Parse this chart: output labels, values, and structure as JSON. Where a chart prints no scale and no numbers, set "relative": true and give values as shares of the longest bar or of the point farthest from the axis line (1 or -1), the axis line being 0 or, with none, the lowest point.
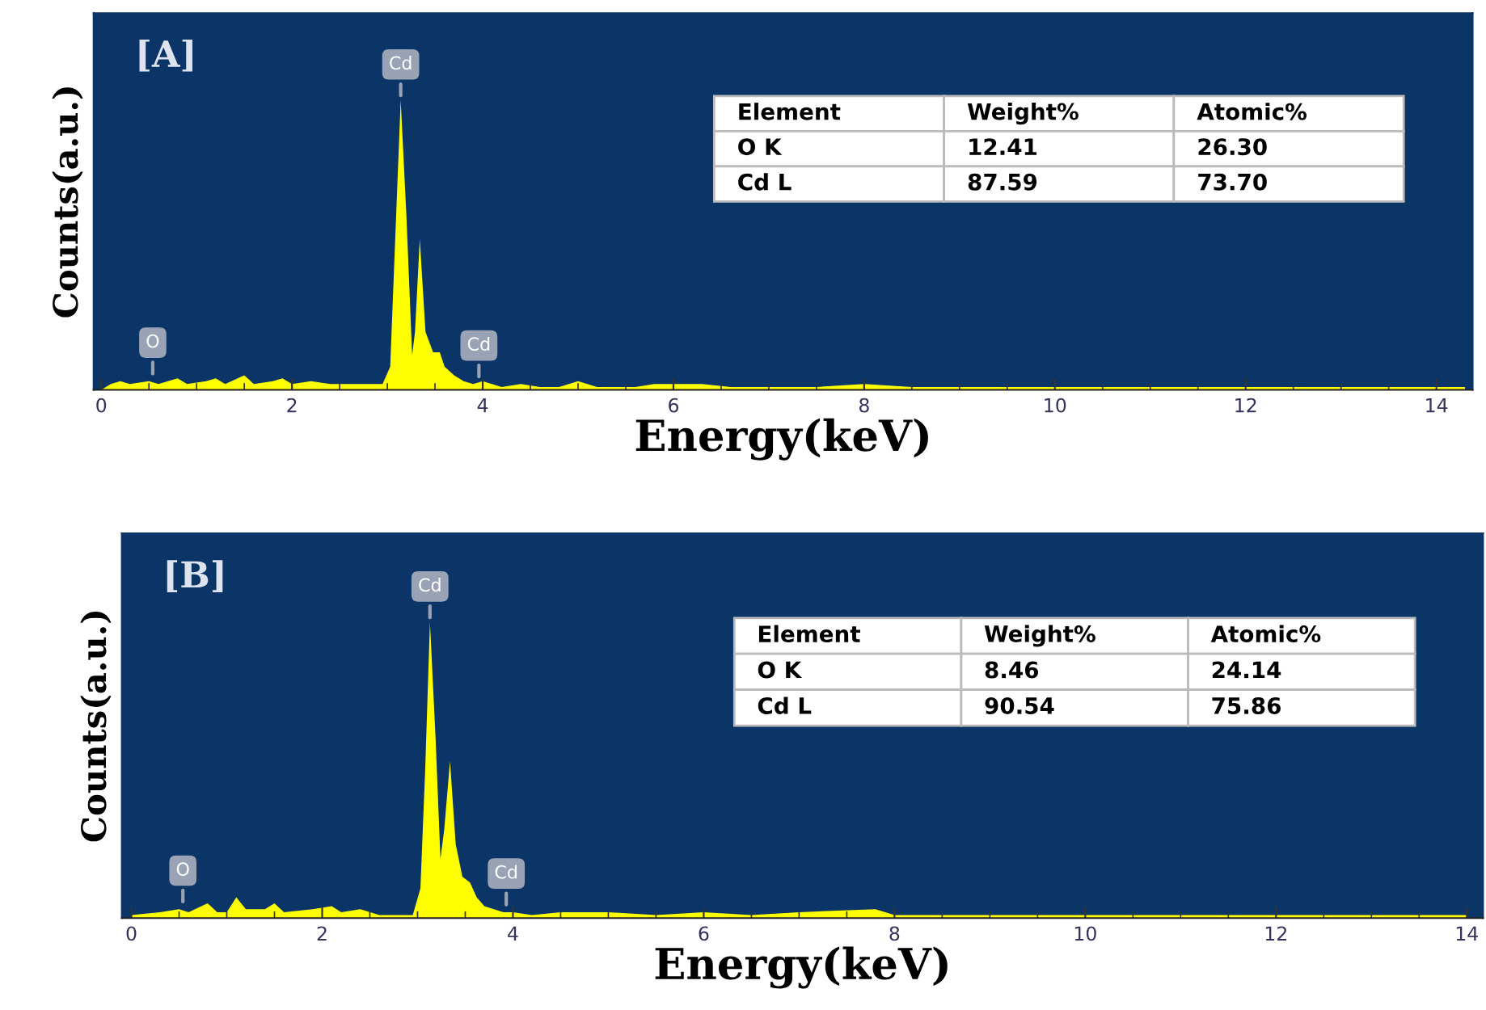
{
  "chart_data": [
    {
      "type": "area",
      "relative": true,
      "xlabel": "Energy(keV)",
      "ylabel": "Counts(a.u.)",
      "xlim": [
        -0.08,
        14.38
      ],
      "xticks": [
        0,
        2,
        4,
        6,
        8,
        10,
        12,
        14
      ],
      "tick_labels": "x",
      "grid": false,
      "annotations": [
        "[A]",
        "Element",
        "Weight%",
        "Atomic%",
        "O K",
        "12.41",
        "26.30",
        "Cd L",
        "87.59",
        "73.70",
        {
          "text": "O",
          "x": 0.54,
          "y": 0.04
        },
        {
          "text": "Cd",
          "x": 3.14,
          "y": 1.0
        },
        {
          "text": "Cd",
          "x": 3.96,
          "y": 0.03
        }
      ],
      "series": [
        {
          "color": "#ffff00",
          "x": [
            0.0,
            0.1,
            0.2,
            0.3,
            0.5,
            0.6,
            0.8,
            0.9,
            1.1,
            1.2,
            1.3,
            1.5,
            1.6,
            1.8,
            1.9,
            2.0,
            2.2,
            2.4,
            2.6,
            2.8,
            2.95,
            3.03,
            3.08,
            3.14,
            3.2,
            3.26,
            3.29,
            3.34,
            3.4,
            3.48,
            3.55,
            3.6,
            3.7,
            3.8,
            3.9,
            4.0,
            4.2,
            4.4,
            4.6,
            4.8,
            5.0,
            5.2,
            5.6,
            5.8,
            6.0,
            6.3,
            6.6,
            7.0,
            7.5,
            8.0,
            8.5,
            9.0,
            10.0,
            11.0,
            12.0,
            13.0,
            14.0,
            14.3
          ],
          "values": [
            0.0,
            0.02,
            0.03,
            0.02,
            0.03,
            0.02,
            0.04,
            0.02,
            0.03,
            0.04,
            0.02,
            0.05,
            0.02,
            0.03,
            0.04,
            0.02,
            0.03,
            0.02,
            0.02,
            0.02,
            0.02,
            0.08,
            0.5,
            1.0,
            0.6,
            0.12,
            0.2,
            0.52,
            0.2,
            0.13,
            0.13,
            0.08,
            0.05,
            0.03,
            0.02,
            0.03,
            0.01,
            0.02,
            0.01,
            0.01,
            0.03,
            0.01,
            0.01,
            0.02,
            0.02,
            0.02,
            0.01,
            0.01,
            0.01,
            0.02,
            0.01,
            0.01,
            0.01,
            0.01,
            0.01,
            0.01,
            0.01,
            0.01
          ]
        }
      ]
    },
    {
      "type": "area",
      "relative": true,
      "xlabel": "Energy(keV)",
      "ylabel": "Counts(a.u.)",
      "xlim": [
        -0.1,
        14.17
      ],
      "xticks": [
        0,
        2,
        4,
        6,
        8,
        10,
        12,
        14
      ],
      "tick_labels": "x",
      "grid": false,
      "annotations": [
        "[B]",
        "Element",
        "Weight%",
        "Atomic%",
        "O K",
        "8.46",
        "24.14",
        "Cd L",
        "90.54",
        "75.86",
        {
          "text": "O",
          "x": 0.54,
          "y": 0.04
        },
        {
          "text": "Cd",
          "x": 3.13,
          "y": 1.0
        },
        {
          "text": "Cd",
          "x": 3.93,
          "y": 0.03
        }
      ],
      "series": [
        {
          "color": "#ffff00",
          "x": [
            0.0,
            0.3,
            0.5,
            0.6,
            0.8,
            0.9,
            1.0,
            1.1,
            1.2,
            1.4,
            1.5,
            1.6,
            1.9,
            2.1,
            2.2,
            2.4,
            2.6,
            2.8,
            2.95,
            3.03,
            3.08,
            3.13,
            3.19,
            3.24,
            3.28,
            3.34,
            3.4,
            3.47,
            3.55,
            3.62,
            3.7,
            3.8,
            3.9,
            4.0,
            4.2,
            4.5,
            5.0,
            5.5,
            6.0,
            6.5,
            7.0,
            7.8,
            8.0,
            9.0,
            10.0,
            11.0,
            12.0,
            13.0,
            14.0
          ],
          "values": [
            0.01,
            0.02,
            0.03,
            0.02,
            0.05,
            0.02,
            0.02,
            0.07,
            0.03,
            0.03,
            0.05,
            0.02,
            0.03,
            0.04,
            0.02,
            0.03,
            0.01,
            0.01,
            0.01,
            0.1,
            0.5,
            1.0,
            0.6,
            0.2,
            0.3,
            0.53,
            0.25,
            0.14,
            0.12,
            0.07,
            0.04,
            0.03,
            0.02,
            0.02,
            0.01,
            0.02,
            0.02,
            0.01,
            0.02,
            0.01,
            0.02,
            0.03,
            0.01,
            0.01,
            0.01,
            0.01,
            0.01,
            0.01,
            0.01
          ]
        }
      ]
    }
  ]
}
